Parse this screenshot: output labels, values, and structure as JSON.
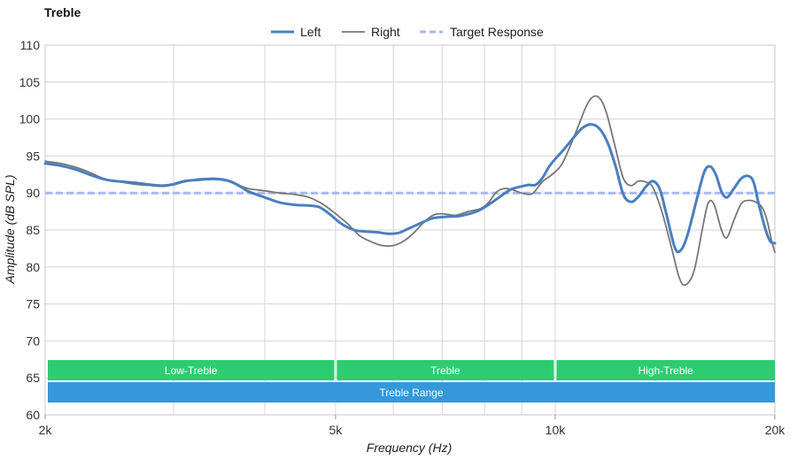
{
  "chart_data": {
    "type": "line",
    "title": "Treble",
    "xlabel": "Frequency (Hz)",
    "ylabel": "Amplitude (dB SPL)",
    "xscale": "log",
    "xlim": [
      2000,
      20000
    ],
    "ylim": [
      60,
      110
    ],
    "yticks": [
      60,
      65,
      70,
      75,
      80,
      85,
      90,
      95,
      100,
      105,
      110
    ],
    "xticks": [
      {
        "value": 2000,
        "label": "2k"
      },
      {
        "value": 5000,
        "label": "5k"
      },
      {
        "value": 10000,
        "label": "10k"
      },
      {
        "value": 20000,
        "label": "20k"
      }
    ],
    "x_gridlines": [
      3000,
      4000,
      5000,
      6000,
      7000,
      8000,
      9000,
      10000
    ],
    "grid": true,
    "legend_position": "top-center",
    "series": [
      {
        "name": "Left",
        "color": "#4a7fbf",
        "style": "solid-thick",
        "points": [
          [
            2000,
            94.0
          ],
          [
            2100,
            93.7
          ],
          [
            2200,
            93.2
          ],
          [
            2300,
            92.5
          ],
          [
            2400,
            91.9
          ],
          [
            2500,
            91.6
          ],
          [
            2650,
            91.4
          ],
          [
            2800,
            91.1
          ],
          [
            2900,
            91.0
          ],
          [
            3000,
            91.2
          ],
          [
            3100,
            91.6
          ],
          [
            3250,
            91.8
          ],
          [
            3400,
            91.9
          ],
          [
            3500,
            91.8
          ],
          [
            3600,
            91.5
          ],
          [
            3700,
            90.9
          ],
          [
            3800,
            90.2
          ],
          [
            4000,
            89.4
          ],
          [
            4200,
            88.7
          ],
          [
            4400,
            88.4
          ],
          [
            4600,
            88.3
          ],
          [
            4750,
            88.1
          ],
          [
            4900,
            87.2
          ],
          [
            5100,
            85.8
          ],
          [
            5300,
            85.0
          ],
          [
            5500,
            84.8
          ],
          [
            5700,
            84.7
          ],
          [
            5900,
            84.5
          ],
          [
            6100,
            84.6
          ],
          [
            6300,
            85.2
          ],
          [
            6600,
            86.1
          ],
          [
            6800,
            86.6
          ],
          [
            7100,
            86.8
          ],
          [
            7400,
            86.9
          ],
          [
            7800,
            87.5
          ],
          [
            8100,
            88.4
          ],
          [
            8400,
            89.5
          ],
          [
            8700,
            90.5
          ],
          [
            9000,
            90.9
          ],
          [
            9200,
            91.1
          ],
          [
            9400,
            91.1
          ],
          [
            9600,
            92.0
          ],
          [
            9800,
            93.5
          ],
          [
            10000,
            94.6
          ],
          [
            10300,
            96.0
          ],
          [
            10600,
            97.5
          ],
          [
            10900,
            98.8
          ],
          [
            11200,
            99.3
          ],
          [
            11500,
            98.7
          ],
          [
            11800,
            96.8
          ],
          [
            12100,
            93.6
          ],
          [
            12400,
            89.8
          ],
          [
            12700,
            88.8
          ],
          [
            13000,
            89.5
          ],
          [
            13300,
            90.8
          ],
          [
            13600,
            91.6
          ],
          [
            13900,
            90.6
          ],
          [
            14200,
            87.2
          ],
          [
            14600,
            82.5
          ],
          [
            14900,
            82.4
          ],
          [
            15200,
            84.5
          ],
          [
            15600,
            88.8
          ],
          [
            16000,
            92.8
          ],
          [
            16300,
            93.6
          ],
          [
            16600,
            92.5
          ],
          [
            16900,
            90.2
          ],
          [
            17200,
            89.4
          ],
          [
            17600,
            90.7
          ],
          [
            18000,
            92.0
          ],
          [
            18400,
            92.3
          ],
          [
            18700,
            91.5
          ],
          [
            19000,
            88.6
          ],
          [
            19400,
            85.2
          ],
          [
            19700,
            83.5
          ],
          [
            20000,
            83.2
          ]
        ]
      },
      {
        "name": "Right",
        "color": "#777777",
        "style": "solid-thin",
        "points": [
          [
            2000,
            94.3
          ],
          [
            2100,
            94.0
          ],
          [
            2200,
            93.5
          ],
          [
            2300,
            92.8
          ],
          [
            2400,
            92.0
          ],
          [
            2500,
            91.6
          ],
          [
            2650,
            91.2
          ],
          [
            2800,
            91.0
          ],
          [
            2900,
            90.9
          ],
          [
            3000,
            91.1
          ],
          [
            3100,
            91.5
          ],
          [
            3250,
            91.9
          ],
          [
            3400,
            92.0
          ],
          [
            3500,
            91.9
          ],
          [
            3600,
            91.6
          ],
          [
            3700,
            91.0
          ],
          [
            3800,
            90.6
          ],
          [
            4000,
            90.3
          ],
          [
            4200,
            90.0
          ],
          [
            4400,
            89.8
          ],
          [
            4600,
            89.4
          ],
          [
            4800,
            88.5
          ],
          [
            5000,
            87.2
          ],
          [
            5200,
            85.8
          ],
          [
            5400,
            84.2
          ],
          [
            5600,
            83.4
          ],
          [
            5800,
            82.9
          ],
          [
            6000,
            82.9
          ],
          [
            6200,
            83.5
          ],
          [
            6400,
            84.6
          ],
          [
            6600,
            86.0
          ],
          [
            6800,
            87.0
          ],
          [
            7000,
            87.2
          ],
          [
            7300,
            87.0
          ],
          [
            7600,
            87.5
          ],
          [
            7900,
            87.9
          ],
          [
            8100,
            88.7
          ],
          [
            8300,
            90.1
          ],
          [
            8500,
            90.6
          ],
          [
            8700,
            90.5
          ],
          [
            9000,
            90.0
          ],
          [
            9300,
            89.9
          ],
          [
            9600,
            91.5
          ],
          [
            9900,
            92.5
          ],
          [
            10200,
            93.8
          ],
          [
            10500,
            96.5
          ],
          [
            10800,
            99.5
          ],
          [
            11000,
            101.5
          ],
          [
            11200,
            102.8
          ],
          [
            11400,
            103.1
          ],
          [
            11600,
            102.3
          ],
          [
            11800,
            100.3
          ],
          [
            12100,
            96.0
          ],
          [
            12400,
            92.0
          ],
          [
            12700,
            91.0
          ],
          [
            13000,
            91.6
          ],
          [
            13300,
            91.5
          ],
          [
            13600,
            90.8
          ],
          [
            14000,
            87.5
          ],
          [
            14400,
            83.0
          ],
          [
            14800,
            78.5
          ],
          [
            15100,
            77.6
          ],
          [
            15500,
            79.5
          ],
          [
            15900,
            85.0
          ],
          [
            16200,
            88.6
          ],
          [
            16500,
            88.5
          ],
          [
            16900,
            85.0
          ],
          [
            17200,
            84.0
          ],
          [
            17600,
            86.5
          ],
          [
            18000,
            88.6
          ],
          [
            18400,
            89.0
          ],
          [
            18800,
            88.8
          ],
          [
            19200,
            88.1
          ],
          [
            19500,
            86.4
          ],
          [
            19800,
            83.5
          ],
          [
            20000,
            82.0
          ]
        ]
      },
      {
        "name": "Target Response",
        "color": "#a8b8f0",
        "style": "dashed",
        "points": [
          [
            2000,
            90.0
          ],
          [
            20000,
            90.0
          ]
        ]
      }
    ],
    "bands": [
      {
        "label": "Low-Treble",
        "from": 2000,
        "to": 5000,
        "row": 0,
        "color": "#2ecc71"
      },
      {
        "label": "Treble",
        "from": 5000,
        "to": 10000,
        "row": 0,
        "color": "#2ecc71"
      },
      {
        "label": "High-Treble",
        "from": 10000,
        "to": 20000,
        "row": 0,
        "color": "#2ecc71"
      },
      {
        "label": "Treble Range",
        "from": 2000,
        "to": 20000,
        "row": 1,
        "color": "#3498db"
      }
    ]
  }
}
